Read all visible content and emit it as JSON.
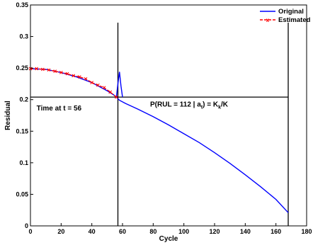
{
  "chart_data": {
    "type": "line",
    "xlabel": "Cycle",
    "ylabel": "Residual",
    "xlim": [
      0,
      180
    ],
    "ylim": [
      0,
      0.35
    ],
    "x_ticks": [
      "0",
      "20",
      "40",
      "60",
      "80",
      "100",
      "120",
      "140",
      "160",
      "180"
    ],
    "y_ticks": [
      "0",
      "0.05",
      "0.1",
      "0.15",
      "0.2",
      "0.25",
      "0.3",
      "0.35"
    ],
    "x_tick_values": [
      0,
      20,
      40,
      60,
      80,
      100,
      120,
      140,
      160,
      180
    ],
    "y_tick_values": [
      0,
      0.05,
      0.1,
      0.15,
      0.2,
      0.25,
      0.3,
      0.35
    ],
    "grid": false,
    "legend_position": "top-right",
    "series": [
      {
        "name": "Original",
        "color": "#0000ff",
        "style": "solid",
        "x": [
          0,
          10,
          20,
          30,
          40,
          50,
          54,
          56,
          58,
          62,
          70,
          80,
          90,
          100,
          110,
          120,
          130,
          140,
          150,
          160,
          168
        ],
        "y": [
          0.249,
          0.248,
          0.243,
          0.236,
          0.227,
          0.214,
          0.208,
          0.204,
          0.199,
          0.194,
          0.185,
          0.173,
          0.16,
          0.146,
          0.132,
          0.116,
          0.099,
          0.081,
          0.062,
          0.042,
          0.021
        ]
      },
      {
        "name": "Estimated",
        "color": "#ff0000",
        "style": "dashed",
        "markers": "x",
        "x": [
          0,
          4,
          8,
          12,
          16,
          20,
          24,
          28,
          32,
          36,
          40,
          44,
          48,
          52,
          56
        ],
        "y": [
          0.249,
          0.249,
          0.248,
          0.247,
          0.245,
          0.243,
          0.241,
          0.238,
          0.236,
          0.233,
          0.227,
          0.223,
          0.219,
          0.212,
          0.204
        ]
      }
    ],
    "spike": {
      "series": "Original",
      "x": [
        56,
        57,
        58,
        59,
        60
      ],
      "y": [
        0.204,
        0.225,
        0.244,
        0.222,
        0.204
      ]
    },
    "reference_lines": {
      "horizontal_y": 0.204,
      "horizontal_x_range": [
        0,
        168
      ],
      "vertical_x": [
        57,
        168
      ]
    },
    "annotations": {
      "time_label": "Time at t = 56",
      "prob_prefix": "P(RUL = 112 | a",
      "prob_sub1": "t",
      "prob_mid": ") = K",
      "prob_sub2": "k",
      "prob_suffix": "/K",
      "time_label_pos": [
        4,
        0.183
      ],
      "prob_label_pos": [
        78,
        0.189
      ]
    }
  }
}
